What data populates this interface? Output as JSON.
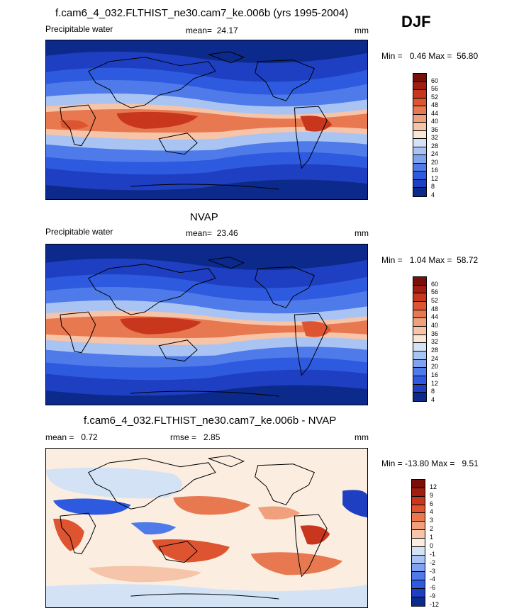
{
  "season": "DJF",
  "colors": {
    "precip_scale": [
      "#0c2a8c",
      "#1f3fc2",
      "#2e5ae0",
      "#4f7bea",
      "#7fa3ef",
      "#a9c4f2",
      "#d4e2f6",
      "#f8e6d7",
      "#f6c4a8",
      "#f0a07b",
      "#e8784f",
      "#de5430",
      "#c8361e",
      "#a01d10",
      "#7a0e08"
    ],
    "diff_scale": [
      "#0c2a8c",
      "#1f3fc2",
      "#2e5ae0",
      "#4f7bea",
      "#7fa3ef",
      "#a9c4f2",
      "#d4e2f6",
      "#fbede0",
      "#f6c4a8",
      "#f0a07b",
      "#e8784f",
      "#de5430",
      "#c8361e",
      "#a01d10",
      "#7a0e08"
    ]
  },
  "chart_data": [
    {
      "type": "heatmap",
      "title": "f.cam6_4_032.FLTHIST_ne30.cam7_ke.006b (yrs 1995-2004)",
      "variable": "Precipitable water",
      "mean_label": "mean=",
      "mean": "24.17",
      "units": "mm",
      "min_label": "Min =",
      "min": "0.46",
      "max_label": "Max =",
      "max": "56.80",
      "colorbar_ticks": [
        "60",
        "56",
        "52",
        "48",
        "44",
        "40",
        "36",
        "32",
        "28",
        "24",
        "20",
        "16",
        "12",
        "8",
        "4"
      ]
    },
    {
      "type": "heatmap",
      "title": "NVAP",
      "variable": "Precipitable water",
      "mean_label": "mean=",
      "mean": "23.46",
      "units": "mm",
      "min_label": "Min =",
      "min": "1.04",
      "max_label": "Max =",
      "max": "58.72",
      "colorbar_ticks": [
        "60",
        "56",
        "52",
        "48",
        "44",
        "40",
        "36",
        "32",
        "28",
        "24",
        "20",
        "16",
        "12",
        "8",
        "4"
      ]
    },
    {
      "type": "heatmap",
      "title": "f.cam6_4_032.FLTHIST_ne30.cam7_ke.006b - NVAP",
      "mean_label": "mean =",
      "mean": "0.72",
      "rmse_label": "rmse =",
      "rmse": "2.85",
      "units": "mm",
      "min_label": "Min =",
      "min": "-13.80",
      "max_label": "Max =",
      "max": "9.51",
      "colorbar_ticks": [
        "12",
        "9",
        "6",
        "4",
        "3",
        "2",
        "1",
        "0",
        "-1",
        "-2",
        "-3",
        "-4",
        "-6",
        "-9",
        "-12"
      ]
    }
  ]
}
